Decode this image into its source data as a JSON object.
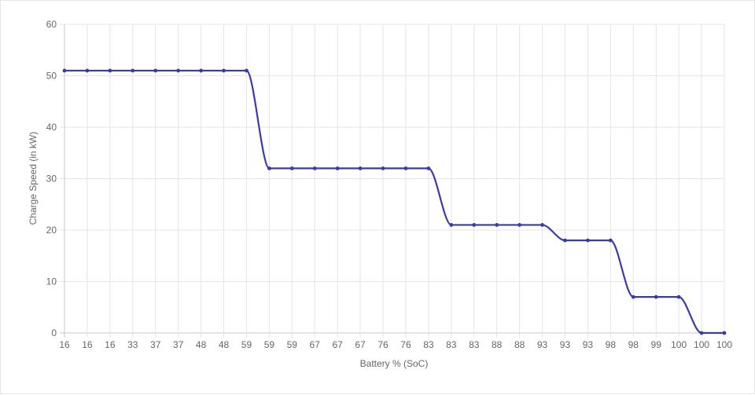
{
  "chart_data": {
    "type": "line",
    "title": "",
    "xlabel": "Battery % (SoC)",
    "ylabel": "Charge Speed (in kW)",
    "ylim": [
      0,
      60
    ],
    "yticks": [
      0,
      10,
      20,
      30,
      40,
      50,
      60
    ],
    "grid": true,
    "legend": "none",
    "categories": [
      "16",
      "16",
      "16",
      "33",
      "37",
      "37",
      "48",
      "48",
      "59",
      "59",
      "59",
      "67",
      "67",
      "67",
      "76",
      "76",
      "83",
      "83",
      "83",
      "88",
      "88",
      "93",
      "93",
      "93",
      "98",
      "98",
      "99",
      "100",
      "100",
      "100"
    ],
    "series": [
      {
        "values": [
          51,
          51,
          51,
          51,
          51,
          51,
          51,
          51,
          51,
          32,
          32,
          32,
          32,
          32,
          32,
          32,
          32,
          21,
          21,
          21,
          21,
          21,
          18,
          18,
          18,
          7,
          7,
          7,
          0,
          0
        ],
        "color": "#3a3aab"
      }
    ]
  }
}
